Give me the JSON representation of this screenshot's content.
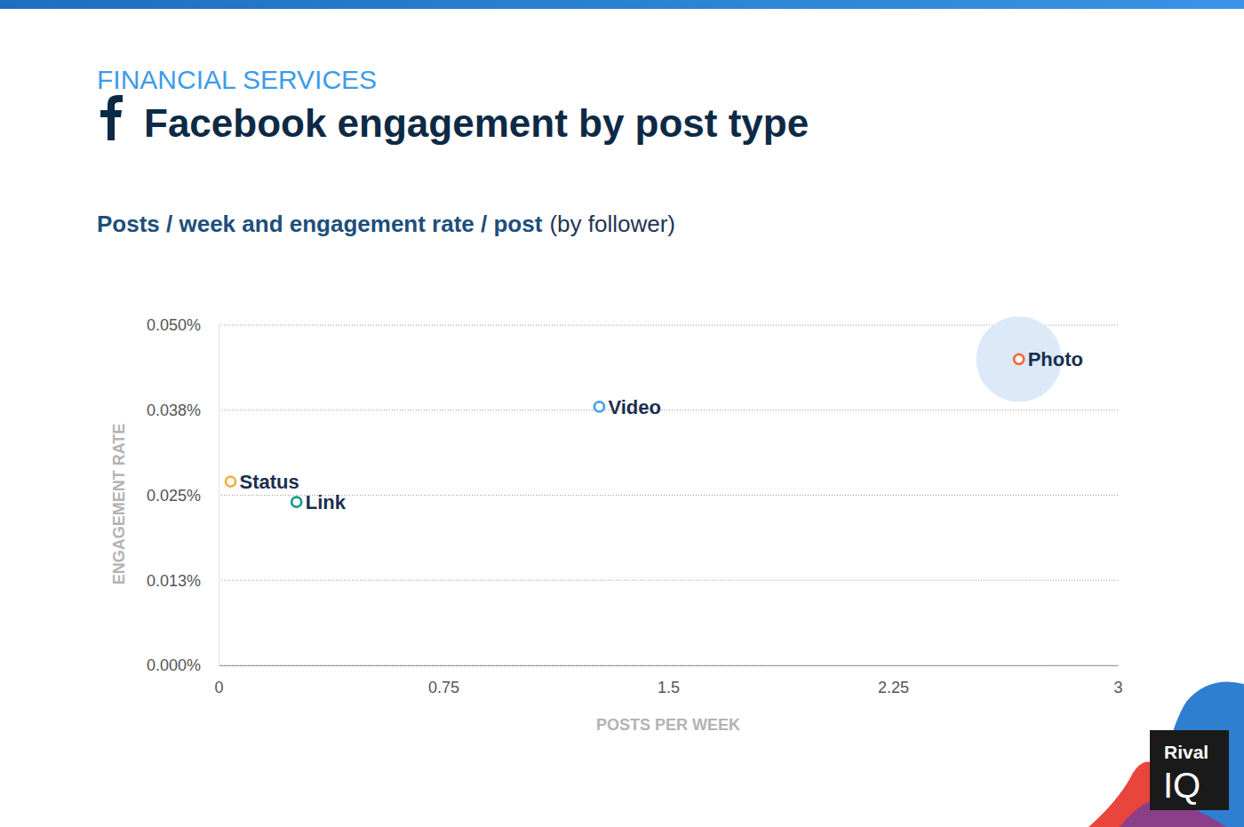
{
  "chart_data": {
    "type": "scatter",
    "header": "FINANCIAL SERVICES",
    "title": "Facebook engagement by post type",
    "subtitle": "Posts / week and engagement rate / post",
    "subtitle_note": "(by follower)",
    "xlabel": "POSTS PER WEEK",
    "ylabel": "ENGAGEMENT RATE",
    "point_labels": [
      "Status",
      "Link",
      "Video",
      "Photo"
    ],
    "x": [
      0.04,
      0.26,
      1.27,
      2.67
    ],
    "values": [
      0.027,
      0.024,
      0.038,
      0.045
    ],
    "colors": [
      "#f0b243",
      "#1a9b8f",
      "#4aa3f0",
      "#f26b3a"
    ],
    "marker": "open-circle",
    "xlim": [
      0,
      3
    ],
    "xticks": [
      0,
      0.75,
      1.5,
      2.25,
      3
    ],
    "ylim": [
      0,
      0.05
    ],
    "yticks": [
      {
        "value": 0,
        "label": "0.000%"
      },
      {
        "value": 0.0125,
        "label": "0.013%"
      },
      {
        "value": 0.025,
        "label": "0.025%"
      },
      {
        "value": 0.0375,
        "label": "0.038%"
      },
      {
        "value": 0.05,
        "label": "0.050%"
      }
    ],
    "grid": true,
    "logo": [
      "Rival",
      "IQ"
    ]
  }
}
